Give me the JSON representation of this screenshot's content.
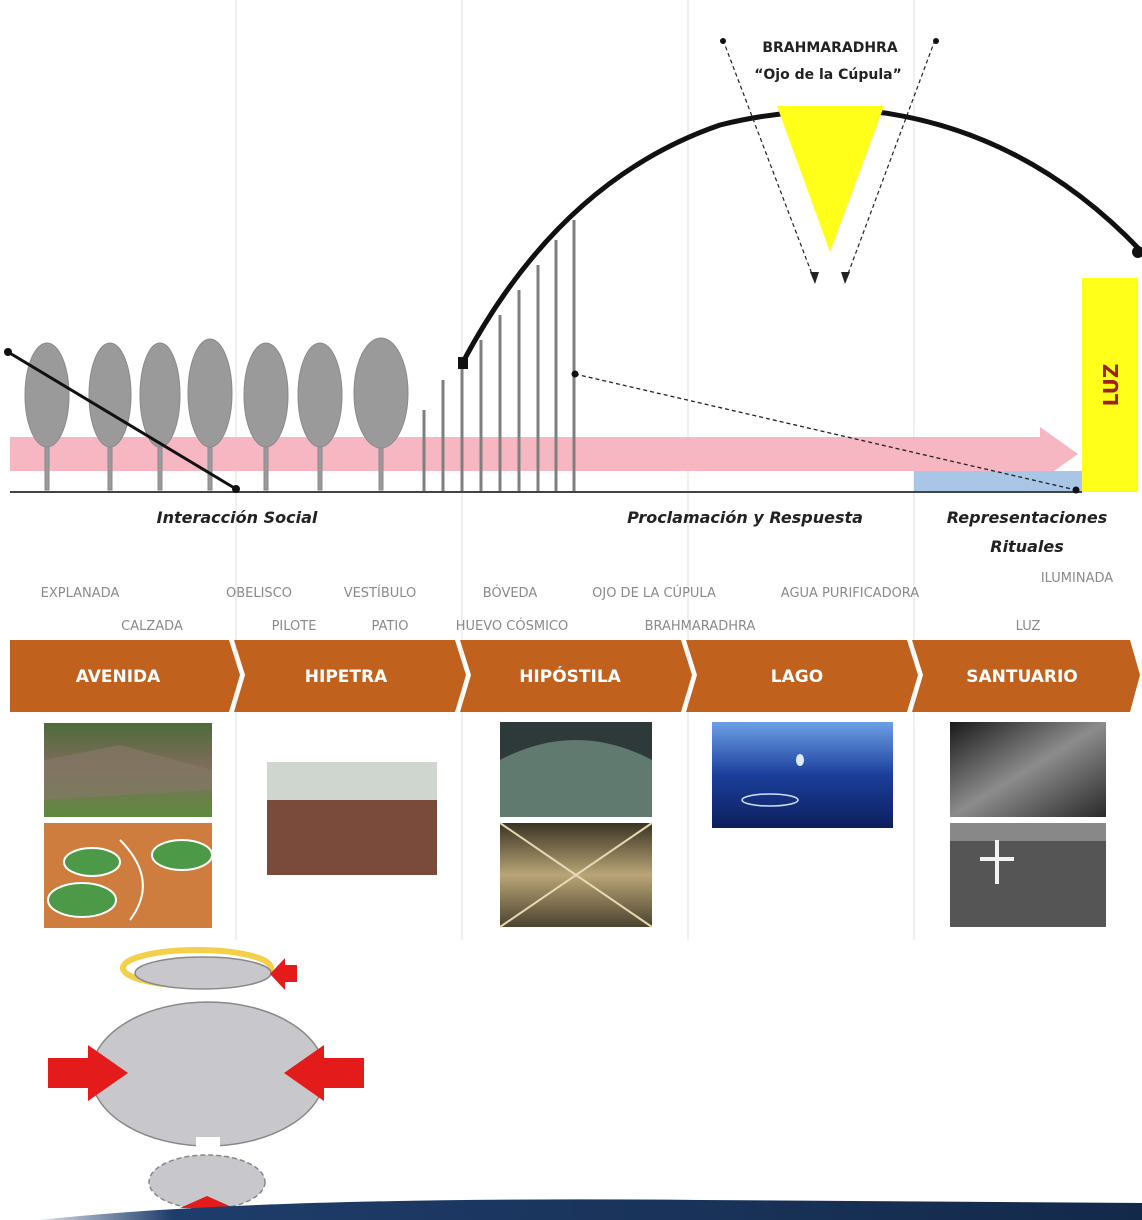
{
  "top_labels": {
    "brahmaradhra": "BRAHMARADHRA",
    "ojo": "“Ojo de la Cúpula”",
    "luz": "LUZ"
  },
  "captions": {
    "interaccion": "Interacción Social",
    "proclamacion": "Proclamación y Respuesta",
    "representaciones_1": "Representaciones",
    "representaciones_2": "Rituales"
  },
  "elements_row1": [
    "EXPLANADA",
    "OBELISCO",
    "VESTÍBULO",
    "BÓVEDA",
    "OJO DE LA CÚPULA",
    "AGUA PURIFICADORA",
    "ILUMINADA"
  ],
  "elements_row2": [
    "CALZADA",
    "PILOTE",
    "PATIO",
    "HUEVO CÓSMICO",
    "BRAHMARADHRA",
    "LUZ"
  ],
  "zones": [
    "AVENIDA",
    "HIPETRA",
    "HIPÓSTILA",
    "LAGO",
    "SANTUARIO"
  ],
  "colors": {
    "zone_band": "#c0611d",
    "light_bar": "#ffff1a",
    "pink_band": "#f6b7c2",
    "blue_band": "#a9c6e6",
    "tree": "#9a9a9a",
    "red_arrow": "#e31b1b",
    "oval": "#c8c8cc",
    "footer": "#1f3d6b"
  },
  "icons": [
    "tree-icon",
    "red-arrow-icon"
  ]
}
